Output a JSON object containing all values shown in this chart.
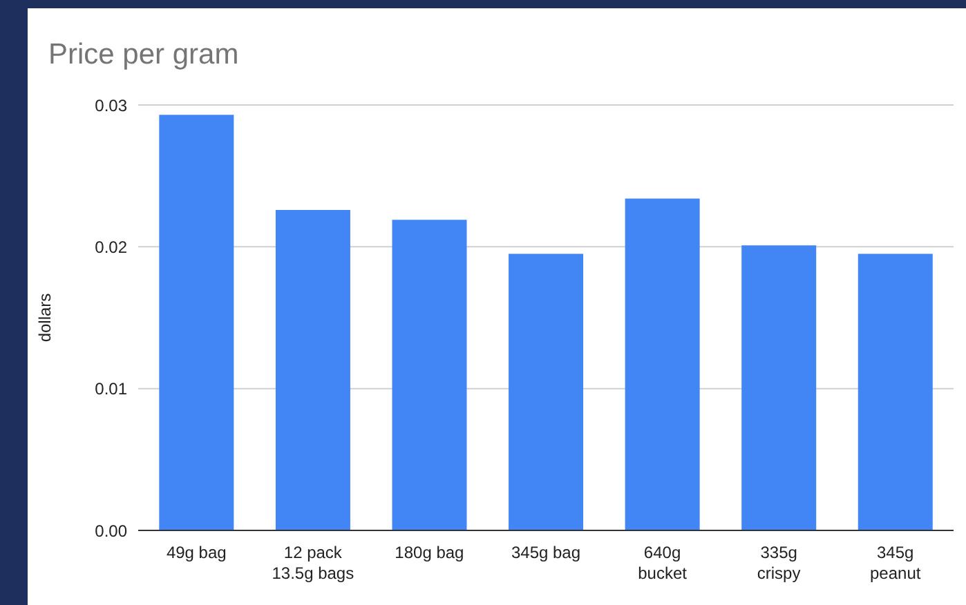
{
  "chart_data": {
    "type": "bar",
    "title": "Price per gram",
    "ylabel": "dollars",
    "categories": [
      "49g bag",
      "12 pack 13.5g bags",
      "180g bag",
      "345g bag",
      "640g bucket",
      "335g crispy",
      "345g peanut"
    ],
    "values": [
      0.0293,
      0.0226,
      0.0219,
      0.0195,
      0.0234,
      0.0201,
      0.0195
    ],
    "color": "#4285f4",
    "ylim": [
      0,
      0.03
    ],
    "yticks": [
      {
        "value": 0,
        "label": "0.00"
      },
      {
        "value": 0.01,
        "label": "0.01"
      },
      {
        "value": 0.02,
        "label": "0.02"
      },
      {
        "value": 0.03,
        "label": "0.03"
      }
    ],
    "grid": "y",
    "legend": false
  }
}
